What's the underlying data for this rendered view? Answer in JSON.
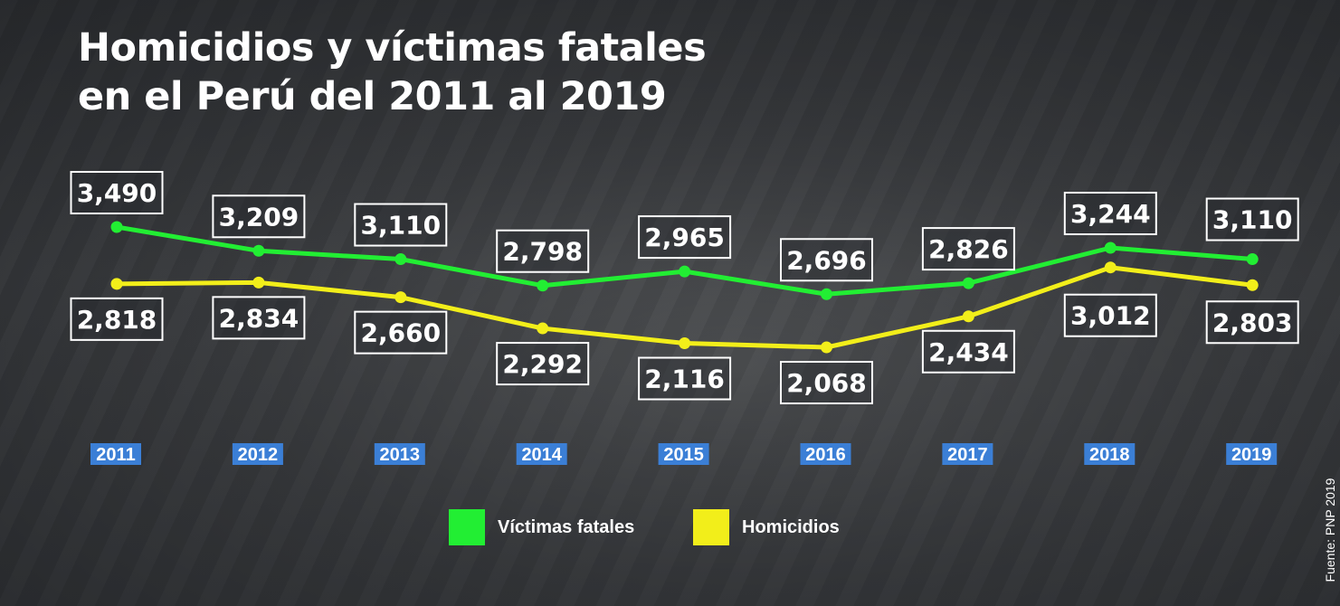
{
  "title_line1": "Homicidios y víctimas fatales",
  "title_line2": "en el Perú del 2011 al 2019",
  "source": "Fuente: PNP 2019",
  "chart_data": {
    "type": "line",
    "categories": [
      "2011",
      "2012",
      "2013",
      "2014",
      "2015",
      "2016",
      "2017",
      "2018",
      "2019"
    ],
    "series": [
      {
        "name": "Víctimas fatales",
        "color": "#22ee33",
        "values": [
          3490,
          3209,
          3110,
          2798,
          2965,
          2696,
          2826,
          3244,
          3110
        ],
        "labels": [
          "3,490",
          "3,209",
          "3,110",
          "2,798",
          "2,965",
          "2,696",
          "2,826",
          "3,244",
          "3,110"
        ]
      },
      {
        "name": "Homicidios",
        "color": "#f2ee1a",
        "values": [
          2818,
          2834,
          2660,
          2292,
          2116,
          2068,
          2434,
          3012,
          2803
        ],
        "labels": [
          "2,818",
          "2,834",
          "2,660",
          "2,292",
          "2,116",
          "2,068",
          "2,434",
          "3,012",
          "2,803"
        ]
      }
    ],
    "grid": false,
    "legend_position": "bottom-center",
    "year_label_color": "#3b7fd6"
  }
}
